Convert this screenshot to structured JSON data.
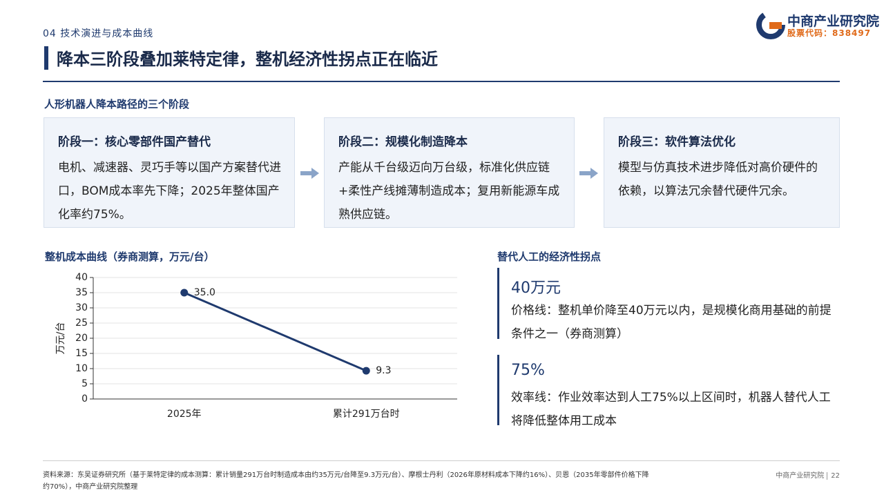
{
  "header": {
    "section": "04 技术演进与成本曲线",
    "title": "降本三阶段叠加莱特定律，整机经济性拐点正在临近"
  },
  "logo": {
    "name": "中商产业研究院",
    "stock": "股票代码：838497"
  },
  "stages": {
    "heading": "人形机器人降本路径的三个阶段",
    "items": [
      {
        "title": "阶段一：核心零部件国产替代",
        "text": "电机、减速器、灵巧手等以国产方案替代进口，BOM成本率先下降；2025年整体国产化率约75%。"
      },
      {
        "title": "阶段二：规模化制造降本",
        "text": "产能从千台级迈向万台级，标准化供应链+柔性产线摊薄制造成本；复用新能源车成熟供应链。"
      },
      {
        "title": "阶段三：软件算法优化",
        "text": "模型与仿真技术进步降低对高价硬件的依赖，以算法冗余替代硬件冗余。"
      }
    ]
  },
  "chart_data": {
    "type": "line",
    "title": "整机成本曲线（券商测算，万元/台）",
    "ylabel": "万元/台",
    "categories": [
      "2025年",
      "累计291万台时"
    ],
    "values": [
      35.0,
      9.3
    ],
    "value_labels": [
      "35.0",
      "9.3"
    ],
    "color": "#1f3a6e",
    "ylim": [
      0,
      40
    ],
    "yticks": [
      0,
      5,
      10,
      15,
      20,
      25,
      30,
      35,
      40
    ],
    "grid": true
  },
  "inflection": {
    "heading": "替代人工的经济性拐点",
    "items": [
      {
        "value": "40万元",
        "text": "价格线：整机单价降至40万元以内，是规模化商用基础的前提条件之一（券商测算）"
      },
      {
        "value": "75%",
        "text": "效率线：作业效率达到人工75%以上区间时，机器人替代人工将降低整体用工成本"
      }
    ]
  },
  "footer": {
    "source": "资料来源：东吴证券研究所（基于莱特定律的成本测算：累计销量291万台时制造成本由约35万元/台降至9.3万元/台）、摩根士丹利（2026年原材料成本下降约16%）、贝恩（2035年零部件价格下降约70%），中商产业研究院整理",
    "org": "中商产业研究院",
    "page": "22"
  }
}
